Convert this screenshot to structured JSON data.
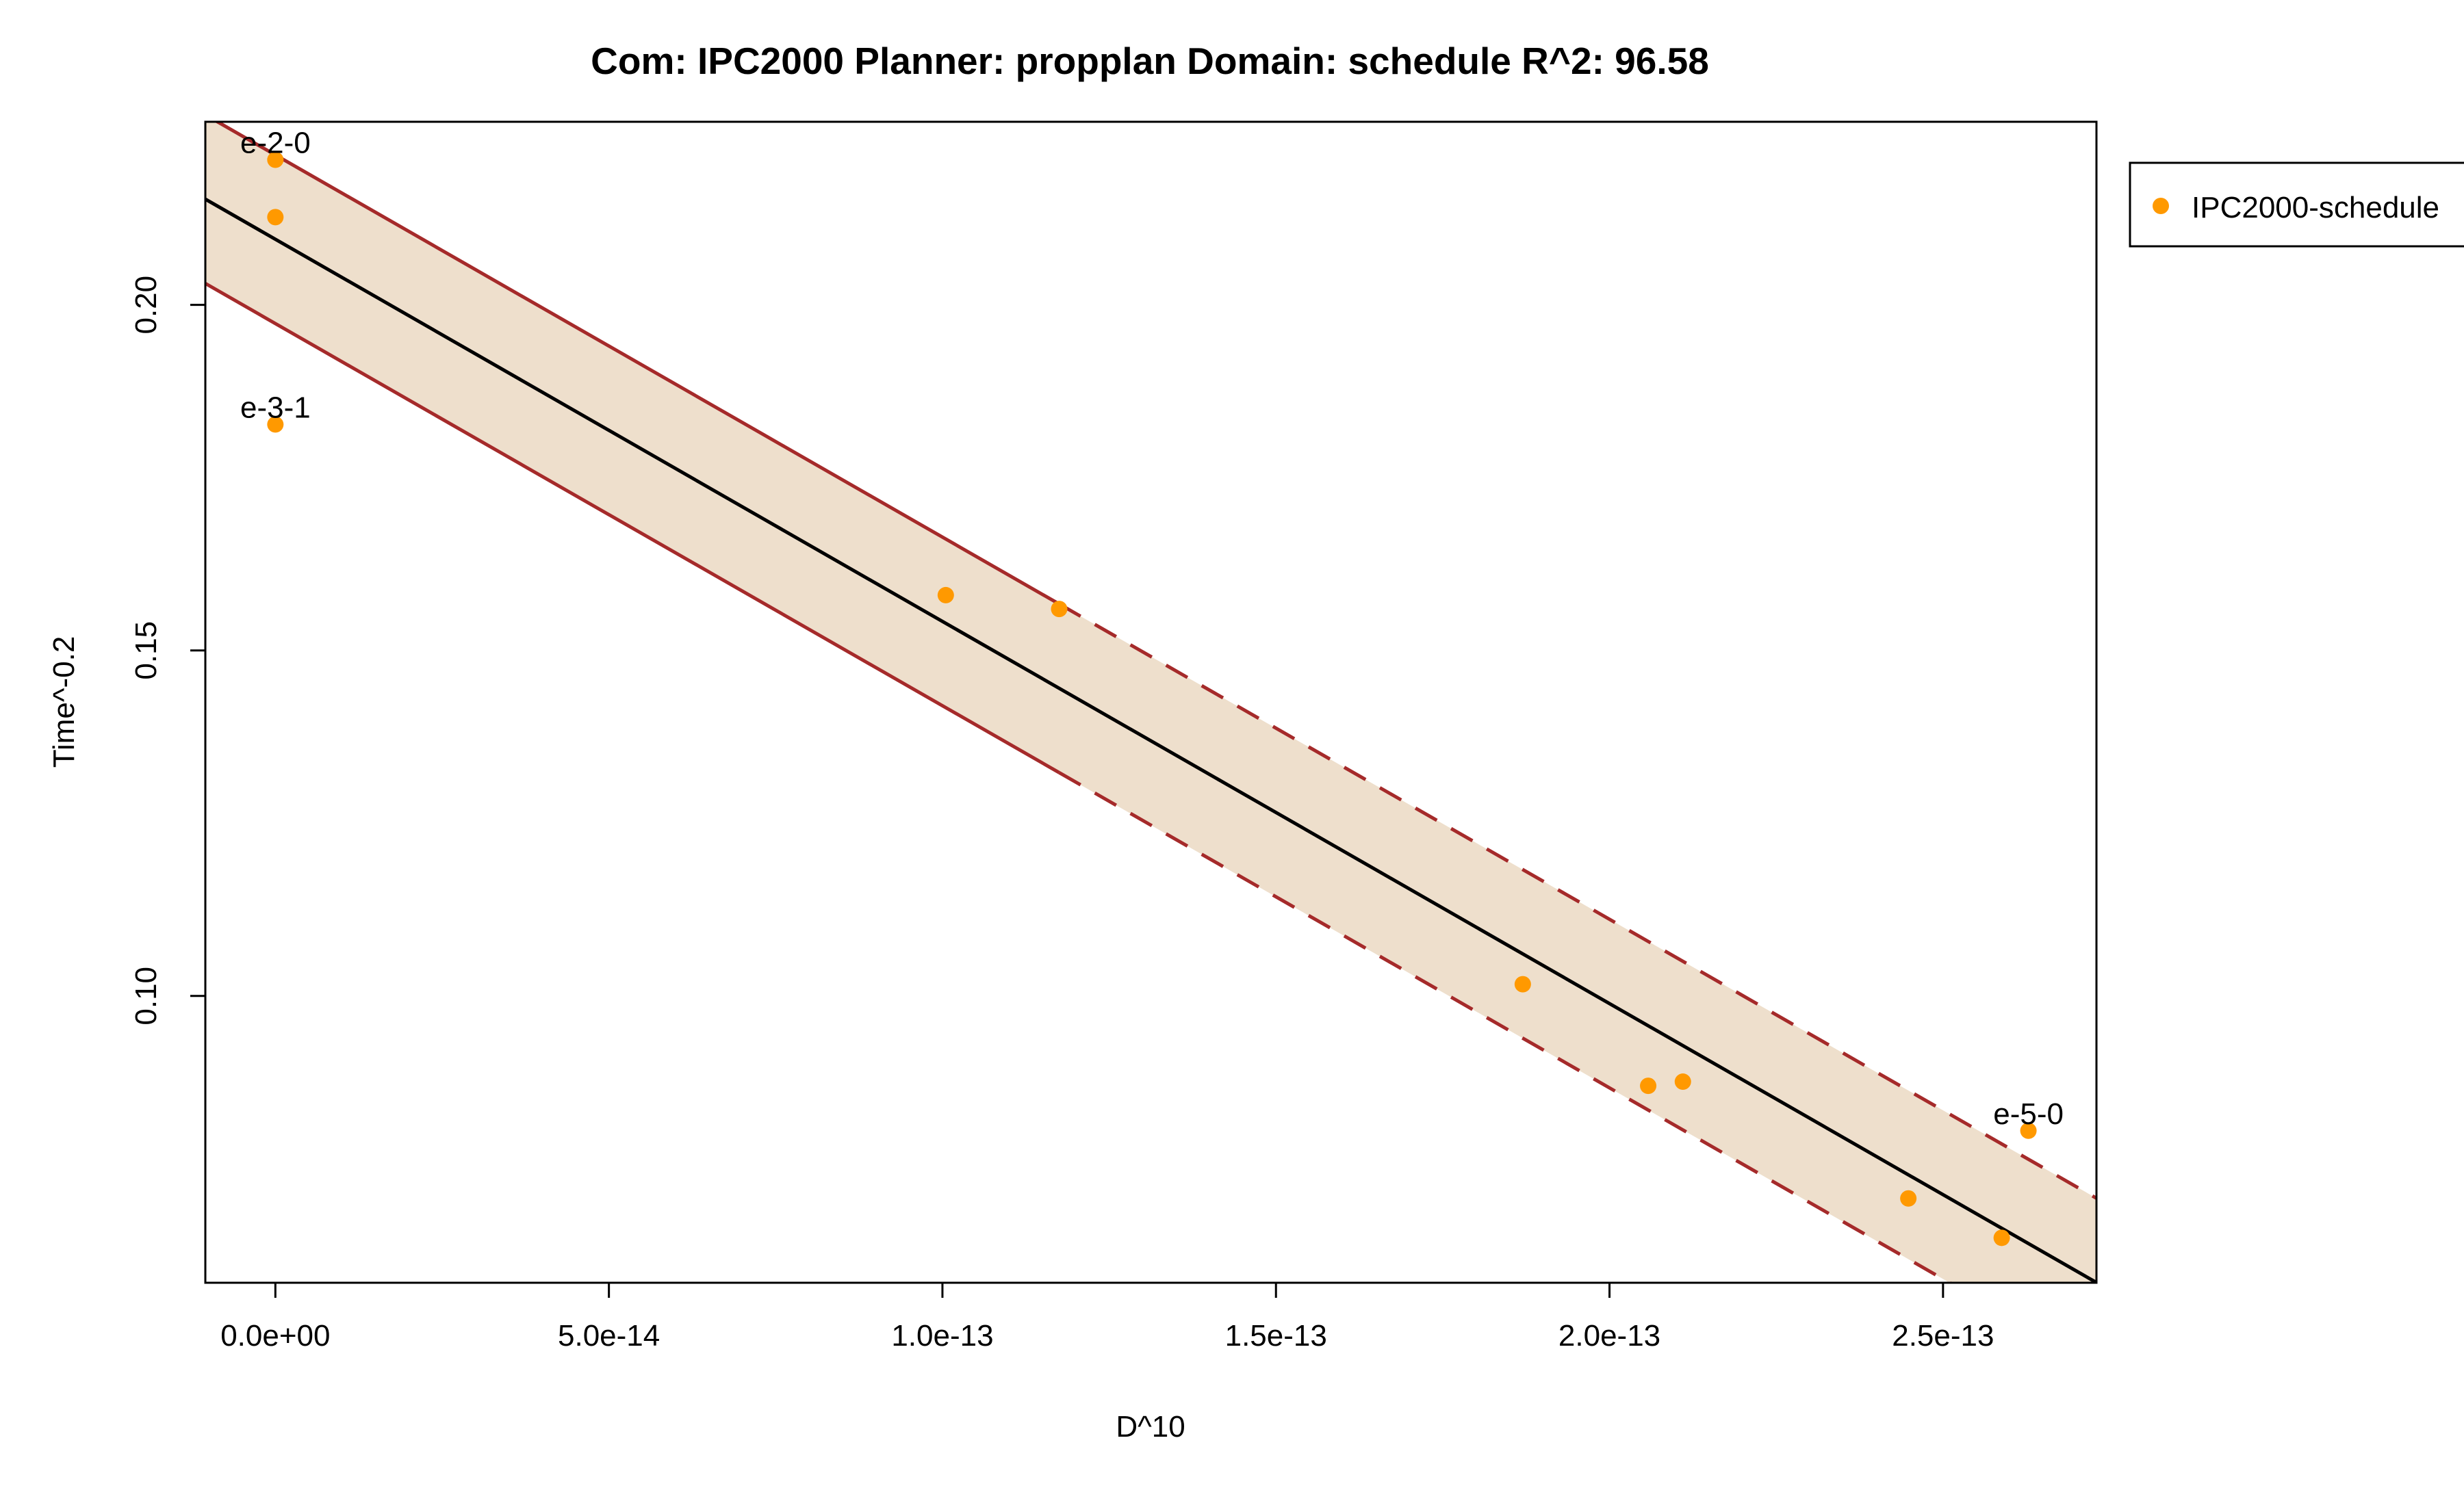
{
  "chart_data": {
    "type": "scatter",
    "title": "Com: IPC2000 Planner: propplan Domain: schedule R^2: 96.58",
    "xlabel": "D^10",
    "ylabel": "Time^-0.2",
    "xlim": [
      -1.05e-14,
      2.73e-13
    ],
    "ylim": [
      0.0585,
      0.2265
    ],
    "x_ticks": [
      0,
      5e-14,
      1e-13,
      1.5e-13,
      2e-13,
      2.5e-13
    ],
    "x_tick_labels": [
      "0.0e+00",
      "5.0e-14",
      "1.0e-13",
      "1.5e-13",
      "2.0e-13",
      "2.5e-13"
    ],
    "y_ticks": [
      0.1,
      0.15,
      0.2
    ],
    "y_tick_labels": [
      "0.10",
      "0.15",
      "0.20"
    ],
    "grid": false,
    "legend_position": "top-right, outside plot",
    "series": [
      {
        "name": "IPC2000-schedule",
        "color": "#FF9900",
        "points": [
          {
            "x": 0,
            "y": 0.221
          },
          {
            "x": 0,
            "y": 0.2127
          },
          {
            "x": 0,
            "y": 0.1827
          },
          {
            "x": 1.005e-13,
            "y": 0.158
          },
          {
            "x": 1.175e-13,
            "y": 0.156
          },
          {
            "x": 1.87e-13,
            "y": 0.1017
          },
          {
            "x": 2.058e-13,
            "y": 0.087
          },
          {
            "x": 2.11e-13,
            "y": 0.0876
          },
          {
            "x": 2.448e-13,
            "y": 0.0707
          },
          {
            "x": 2.588e-13,
            "y": 0.065
          },
          {
            "x": 2.628e-13,
            "y": 0.0805
          }
        ]
      }
    ],
    "point_labels": [
      {
        "text": "e-2-0",
        "x": 0,
        "y": 0.221
      },
      {
        "text": "e-3-1",
        "x": 0,
        "y": 0.1827
      },
      {
        "text": "e-5-0",
        "x": 2.628e-13,
        "y": 0.0805
      }
    ],
    "fit_line": {
      "intercept": 0.2095,
      "slope": -553000000000.0,
      "color": "#000000"
    },
    "interval": {
      "half_width": 0.0122,
      "data_max_x": 1.175e-13,
      "band_color": "#EEDFCC",
      "line_color": "#A52A2A"
    }
  }
}
